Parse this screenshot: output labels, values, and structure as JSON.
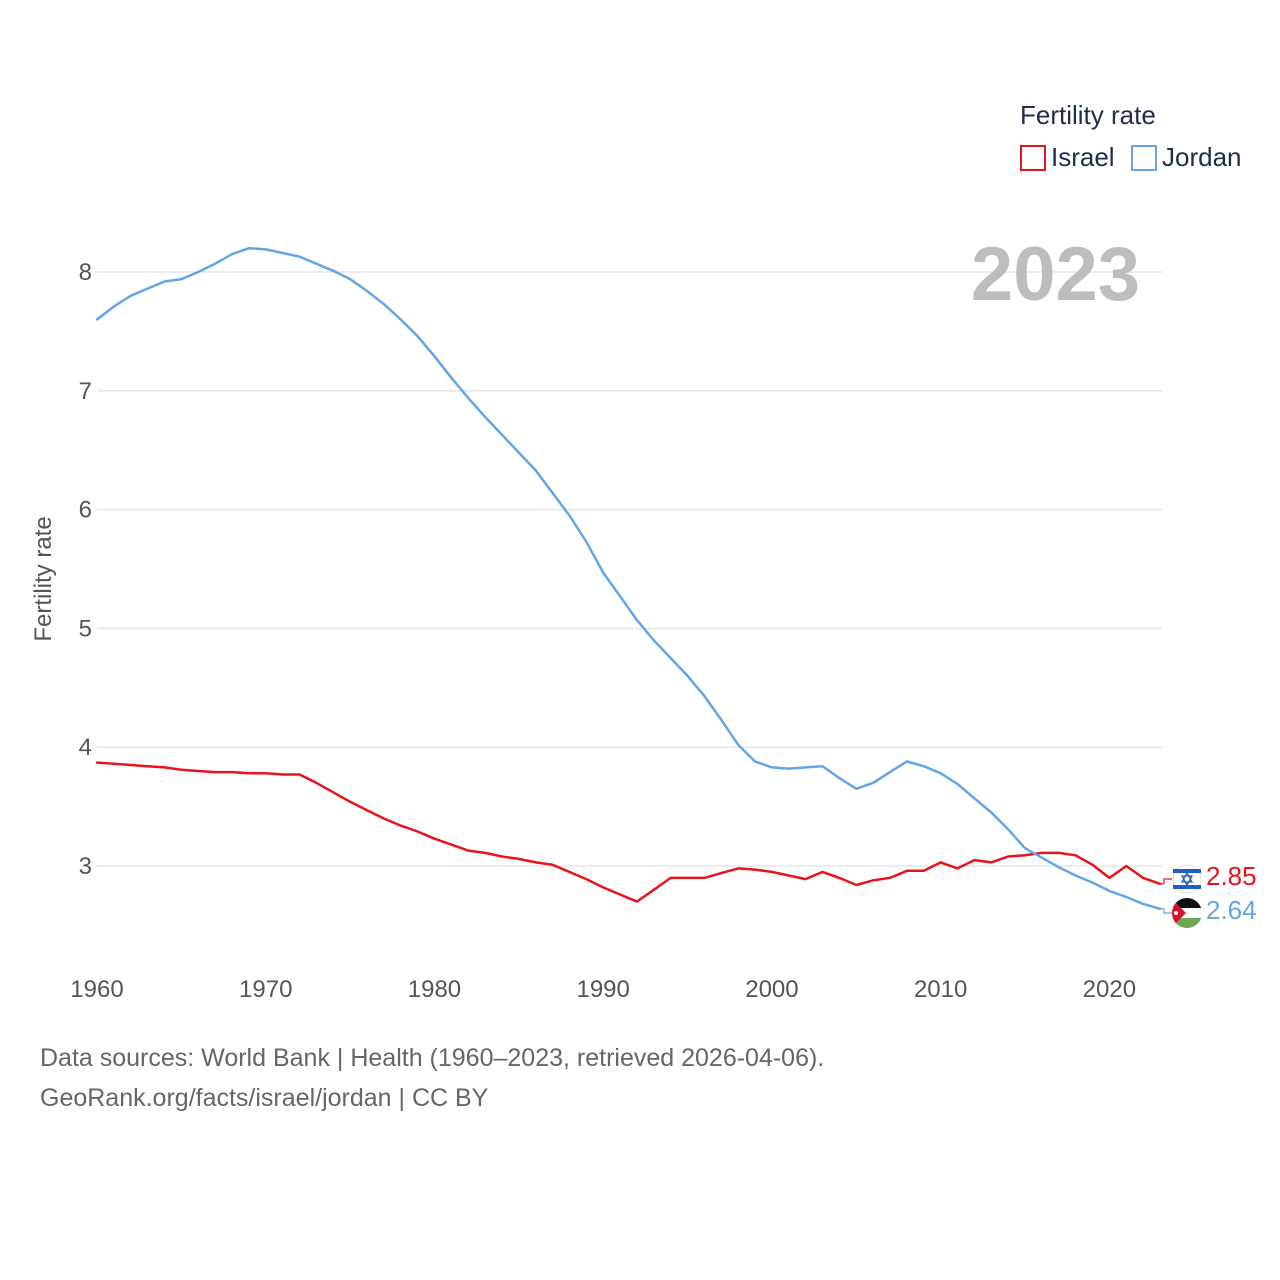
{
  "chart_data": {
    "type": "line",
    "title": "",
    "ylabel": "Fertility rate",
    "xlabel": "",
    "xlim": [
      1960,
      2023
    ],
    "ylim": [
      2.3,
      8.5
    ],
    "yticks": [
      3,
      4,
      5,
      6,
      7,
      8
    ],
    "xticks": [
      1960,
      1970,
      1980,
      1990,
      2000,
      2010,
      2020
    ],
    "year_label": "2023",
    "legend": {
      "title": "Fertility rate",
      "position": "top-right"
    },
    "x": [
      1960,
      1961,
      1962,
      1963,
      1964,
      1965,
      1966,
      1967,
      1968,
      1969,
      1970,
      1971,
      1972,
      1973,
      1974,
      1975,
      1976,
      1977,
      1978,
      1979,
      1980,
      1981,
      1982,
      1983,
      1984,
      1985,
      1986,
      1987,
      1988,
      1989,
      1990,
      1991,
      1992,
      1993,
      1994,
      1995,
      1996,
      1997,
      1998,
      1999,
      2000,
      2001,
      2002,
      2003,
      2004,
      2005,
      2006,
      2007,
      2008,
      2009,
      2010,
      2011,
      2012,
      2013,
      2014,
      2015,
      2016,
      2017,
      2018,
      2019,
      2020,
      2021,
      2022,
      2023
    ],
    "series": [
      {
        "name": "Israel",
        "color": "#e8141b",
        "end_label": "2.85",
        "values": [
          3.87,
          3.86,
          3.85,
          3.84,
          3.83,
          3.81,
          3.8,
          3.79,
          3.79,
          3.78,
          3.78,
          3.77,
          3.77,
          3.7,
          3.62,
          3.54,
          3.47,
          3.4,
          3.34,
          3.29,
          3.23,
          3.18,
          3.13,
          3.11,
          3.08,
          3.06,
          3.03,
          3.01,
          2.95,
          2.89,
          2.82,
          2.76,
          2.7,
          2.8,
          2.9,
          2.9,
          2.9,
          2.94,
          2.98,
          2.97,
          2.95,
          2.92,
          2.89,
          2.95,
          2.9,
          2.84,
          2.88,
          2.9,
          2.96,
          2.96,
          3.03,
          2.98,
          3.05,
          3.03,
          3.08,
          3.09,
          3.11,
          3.11,
          3.09,
          3.01,
          2.9,
          3.0,
          2.9,
          2.85
        ]
      },
      {
        "name": "Jordan",
        "color": "#62a6e8",
        "end_label": "2.64",
        "values": [
          7.6,
          7.71,
          7.8,
          7.86,
          7.92,
          7.94,
          8.0,
          8.07,
          8.15,
          8.2,
          8.19,
          8.16,
          8.13,
          8.07,
          8.01,
          7.94,
          7.84,
          7.73,
          7.6,
          7.46,
          7.29,
          7.11,
          6.94,
          6.78,
          6.63,
          6.48,
          6.33,
          6.14,
          5.95,
          5.73,
          5.47,
          5.27,
          5.07,
          4.9,
          4.75,
          4.6,
          4.43,
          4.23,
          4.02,
          3.88,
          3.83,
          3.82,
          3.83,
          3.84,
          3.74,
          3.65,
          3.7,
          3.79,
          3.88,
          3.84,
          3.78,
          3.69,
          3.57,
          3.45,
          3.31,
          3.15,
          3.07,
          2.99,
          2.92,
          2.86,
          2.79,
          2.74,
          2.68,
          2.64
        ]
      }
    ]
  },
  "footer": {
    "source_line": "Data sources: World Bank | Health (1960–2023, retrieved 2026-04-06).",
    "credit_line": "GeoRank.org/facts/israel/jordan | CC BY"
  }
}
